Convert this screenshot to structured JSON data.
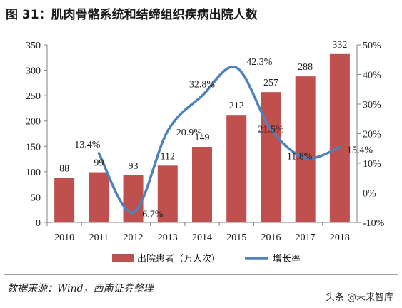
{
  "title": "图 31：肌肉骨骼系统和结缔组织疾病出院人数",
  "source": "数据来源：Wind，西南证券整理",
  "watermark": "头条 @未来智库",
  "colors": {
    "bar": "#c0504d",
    "line": "#4f81bd",
    "axis": "#808080",
    "text": "#1a1a1a"
  },
  "chart_data": {
    "type": "bar",
    "categories": [
      "2010",
      "2011",
      "2012",
      "2013",
      "2014",
      "2015",
      "2016",
      "2017",
      "2018"
    ],
    "series": [
      {
        "name": "出院患者（万人次）",
        "type": "bar",
        "axis": "left",
        "values": [
          88,
          99,
          93,
          112,
          149,
          212,
          257,
          288,
          332
        ],
        "labels": [
          "88",
          "99",
          "93",
          "112",
          "149",
          "212",
          "257",
          "288",
          "332"
        ]
      },
      {
        "name": "增长率",
        "type": "line",
        "axis": "right",
        "values": [
          null,
          13.4,
          -6.7,
          20.9,
          32.8,
          42.3,
          21.5,
          11.8,
          15.4
        ],
        "labels": [
          "",
          "13.4%",
          "-6.7%",
          "20.9%",
          "32.8%",
          "42.3%",
          "21.5%",
          "11.8%",
          "15.4%"
        ]
      }
    ],
    "y_left": {
      "min": 0,
      "max": 350,
      "ticks": [
        "0",
        "50",
        "100",
        "150",
        "200",
        "250",
        "300",
        "350"
      ]
    },
    "y_right": {
      "min": -10,
      "max": 50,
      "ticks": [
        "-10%",
        "0%",
        "10%",
        "20%",
        "30%",
        "40%",
        "50%"
      ]
    },
    "legend": {
      "position": "bottom",
      "entries": [
        "出院患者（万人次）",
        "增长率"
      ]
    },
    "grid": false
  }
}
